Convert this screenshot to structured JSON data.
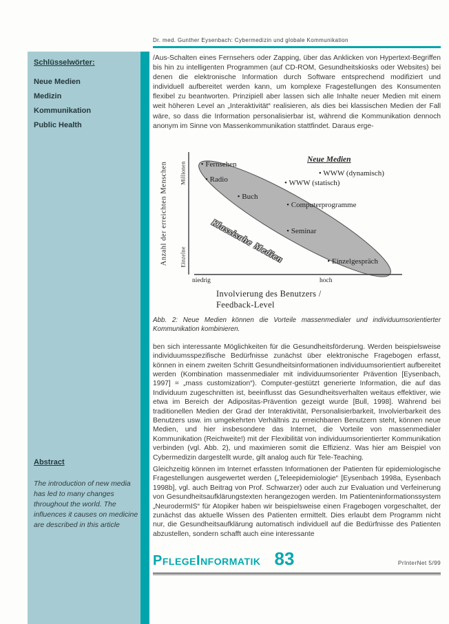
{
  "document": {
    "running_header": "Dr. med. Gunther Eysenbach: Cybermedizin und globale Kommunikation",
    "sidebar": {
      "keywords_heading": "Schlüsselwörter:",
      "keywords": [
        "Neue Medien",
        "Medizin",
        "Kommunikation",
        "Public Health"
      ],
      "abstract_heading": "Abstract",
      "abstract_text": "The introduction of new media has led to many changes throughout the world. The influences it causes on medicine are described in this article"
    },
    "body": {
      "paragraph_1": "/Aus-Schalten eines Fernsehers oder Zapping, über das Anklicken von Hypertext-Begriffen bis hin zu intelligenten Programmen (auf CD-ROM, Gesundheitskiosks oder Websites) bei denen die elektronische Information durch Software entsprechend modifiziert und individuell aufbereitet werden kann, um komplexe Fragestellungen des Konsumenten flexibel zu beantworten. Prinzipiell aber lassen sich alle Inhalte neuer Medien mit einem weit höheren Level an „Interaktivität“ realisieren, als dies bei klassischen Medien der Fall wäre, so dass die Information personalisierbar ist, während die Kommunikation dennoch anonym im Sinne von Massenkommunikation stattfindet. Daraus erge-",
      "figure_caption": "Abb. 2: Neue Medien können die Vorteile massenmedialer und individuumsorientierter Kommunikation kombinieren.",
      "paragraph_2": "ben sich interessante Möglichkeiten für die Gesundheitsförderung. Werden beispielsweise individuumsspezifische Bedürfnisse zunächst über elektronische Fragebogen erfasst, können in einem zweiten Schritt Gesundheitsinformationen individuumsorientiert aufbereitet werden (Kombination massenmedialer mit individuumsorienter Prävention [Eysenbach, 1997] = „mass customization“). Computer-gestützt generierte Information, die auf das Individuum zugeschnitten ist, beeinflusst das Gesundheitsverhalten weitaus effektiver, wie etwa im Bereich der Adipositas-Prävention gezeigt wurde [Bull, 1998]. Während bei traditionellen Medien der Grad der Interaktivität, Personalisierbarkeit, Involvierbarkeit des Benutzers usw. im umgekehrten Verhältnis zu erreichbaren Benutzern steht, können neue Medien, und hier insbesondere das Internet, die Vorteile von massenmedialer Kommunikation (Reichweite!) mit der Flexibilität von individuumsorientierter Kommunikation verbinden (vgl. Abb. 2), und maximieren somit die Effizienz. Was hier am Beispiel von Cybermedizin dargestellt wurde, gilt analog auch für Tele-Teaching.",
      "paragraph_3": "Gleichzeitig können im Internet erfassten Informationen der Patienten für epidemiologische Fragestellungen ausgewertet werden („Teleepidemiologie“ [Eysenbach 1998a, Eysenbach 1998b], vgl. auch Beitrag von Prof. Schwarzer) oder auch zur Evaluation und Verfeinerung von Gesundheitsaufklärungstexten herangezogen werden. Im Patienteninformationssystem „NeurodermIS“ für Atopiker haben wir beispielsweise einen Fragebogen vorgeschaltet, der zunächst das aktuelle Wissen des Patienten ermittelt. Dies erlaubt dem Programm nicht nur, die Gesundheitsaufklärung automatisch individuell auf die Bedürfnisse des Patienten abzustellen, sondern schafft auch eine interessante"
    },
    "footer": {
      "section_title": "PflegeInformatik",
      "page_number": "83",
      "issue": "PrInterNet 5/99"
    },
    "colors": {
      "accent_teal": "#00a5ac",
      "sidebar_bg": "#a7cbd2",
      "footer_logo_teal": "#00a9b0",
      "band_gray": "#b4b4b4"
    }
  },
  "chart_data": {
    "type": "scatter",
    "title": "",
    "xlabel": "Involvierung des Benutzers / Feedback-Level",
    "xlabel_lines": [
      "Involvierung des Benutzers /",
      "Feedback-Level"
    ],
    "ylabel": "Anzahl der erreichten Menschen",
    "x_tick_low": "niedrig",
    "x_tick_high": "hoch",
    "y_tick_high": "Millionen",
    "y_tick_low": "Einzelne",
    "band_label": "Klassische Medien",
    "legend": {
      "label": "Neue Medien"
    },
    "axes_qualitative": true,
    "grid": false,
    "points": [
      {
        "label": "Fernsehen",
        "x": 0.07,
        "y": 0.94,
        "group": "Klassische Medien"
      },
      {
        "label": "Radio",
        "x": 0.09,
        "y": 0.81,
        "group": "Klassische Medien"
      },
      {
        "label": "Buch",
        "x": 0.24,
        "y": 0.66,
        "group": "Klassische Medien"
      },
      {
        "label": "Seminar",
        "x": 0.47,
        "y": 0.36,
        "group": "Klassische Medien"
      },
      {
        "label": "Einzelgespräch",
        "x": 0.66,
        "y": 0.1,
        "group": "Klassische Medien"
      },
      {
        "label": "WWW (dynamisch)",
        "x": 0.62,
        "y": 0.86,
        "group": "Neue Medien"
      },
      {
        "label": "WWW (statisch)",
        "x": 0.46,
        "y": 0.78,
        "group": "Neue Medien"
      },
      {
        "label": "Computerprogramme",
        "x": 0.47,
        "y": 0.59,
        "group": "Neue Medien"
      }
    ]
  }
}
